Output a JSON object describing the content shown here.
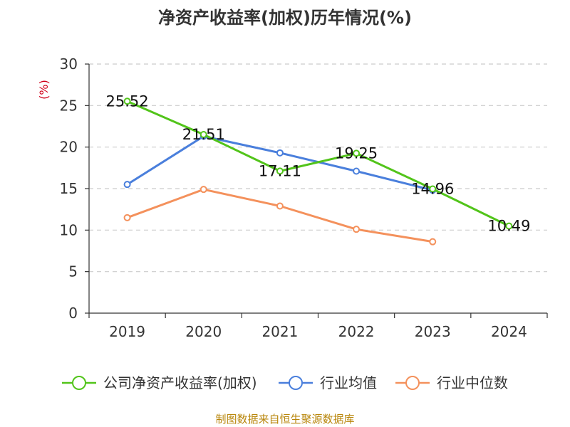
{
  "chart_data": {
    "type": "line",
    "title": "净资产收益率(加权)历年情况(%)",
    "ylabel": "(%)",
    "xlabel": "",
    "ylim": [
      0,
      30
    ],
    "yticks": [
      0,
      5,
      10,
      15,
      20,
      25,
      30
    ],
    "categories": [
      "2019",
      "2020",
      "2021",
      "2022",
      "2023",
      "2024"
    ],
    "grid": true,
    "legend_position": "bottom",
    "series": [
      {
        "name": "公司净资产收益率(加权)",
        "color": "#52c41a",
        "values": [
          25.52,
          21.51,
          17.11,
          19.25,
          14.96,
          10.49
        ],
        "labels": [
          "25.52",
          "21.51",
          "17.11",
          "19.25",
          "14.96",
          "10.49"
        ]
      },
      {
        "name": "行业均值",
        "color": "#4a7fdc",
        "values": [
          15.5,
          21.3,
          19.3,
          17.1,
          14.8,
          null
        ]
      },
      {
        "name": "行业中位数",
        "color": "#f4915c",
        "values": [
          11.5,
          14.9,
          12.9,
          10.1,
          8.6,
          null
        ]
      }
    ]
  },
  "source": "制图数据来自恒生聚源数据库",
  "colors": {
    "title": "#333333",
    "axis": "#333333",
    "grid": "#cccccc",
    "ylabel": "#d0021b",
    "source": "#b8860b"
  }
}
